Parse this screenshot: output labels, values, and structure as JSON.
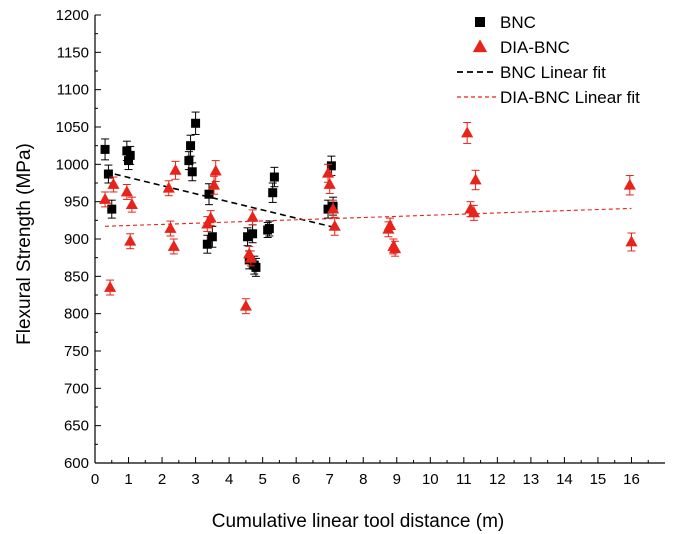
{
  "chart_data": {
    "type": "scatter",
    "xlabel": "Cumulative linear tool distance (m)",
    "ylabel": "Flexural Strength (MPa)",
    "xlim": [
      0,
      17
    ],
    "ylim": [
      600,
      1200
    ],
    "xticks": [
      0,
      1,
      2,
      3,
      4,
      5,
      6,
      7,
      8,
      9,
      10,
      11,
      12,
      13,
      14,
      15,
      16
    ],
    "yticks": [
      600,
      650,
      700,
      750,
      800,
      850,
      900,
      950,
      1000,
      1050,
      1100,
      1150,
      1200
    ],
    "grid": false,
    "legend_position": "top-right",
    "series": [
      {
        "name": "BNC",
        "marker": "square",
        "color": "#000000",
        "points": [
          {
            "x": 0.3,
            "y": 1020,
            "err": 14
          },
          {
            "x": 0.4,
            "y": 987,
            "err": 12
          },
          {
            "x": 0.5,
            "y": 940,
            "err": 12
          },
          {
            "x": 0.95,
            "y": 1018,
            "err": 13
          },
          {
            "x": 1.0,
            "y": 1005,
            "err": 12
          },
          {
            "x": 1.05,
            "y": 1012,
            "err": 12
          },
          {
            "x": 2.8,
            "y": 1005,
            "err": 12
          },
          {
            "x": 2.85,
            "y": 1025,
            "err": 14
          },
          {
            "x": 2.9,
            "y": 990,
            "err": 12
          },
          {
            "x": 3.0,
            "y": 1055,
            "err": 15
          },
          {
            "x": 3.35,
            "y": 893,
            "err": 12
          },
          {
            "x": 3.4,
            "y": 960,
            "err": 14
          },
          {
            "x": 3.5,
            "y": 903,
            "err": 14
          },
          {
            "x": 4.55,
            "y": 903,
            "err": 12
          },
          {
            "x": 4.6,
            "y": 872,
            "err": 12
          },
          {
            "x": 4.7,
            "y": 907,
            "err": 12
          },
          {
            "x": 4.75,
            "y": 865,
            "err": 12
          },
          {
            "x": 4.8,
            "y": 862,
            "err": 12
          },
          {
            "x": 5.15,
            "y": 912,
            "err": 10
          },
          {
            "x": 5.2,
            "y": 914,
            "err": 10
          },
          {
            "x": 5.3,
            "y": 962,
            "err": 13
          },
          {
            "x": 5.35,
            "y": 983,
            "err": 13
          },
          {
            "x": 6.95,
            "y": 940,
            "err": 12
          },
          {
            "x": 7.05,
            "y": 998,
            "err": 13
          },
          {
            "x": 7.1,
            "y": 944,
            "err": 12
          }
        ],
        "fit": {
          "label": "BNC Linear fit",
          "x": [
            0.3,
            7.1
          ],
          "y": [
            990,
            916
          ],
          "style": "dashed"
        }
      },
      {
        "name": "DIA-BNC",
        "marker": "triangle",
        "color": "#e8231a",
        "points": [
          {
            "x": 0.3,
            "y": 953,
            "err": 10
          },
          {
            "x": 0.45,
            "y": 835,
            "err": 10
          },
          {
            "x": 0.55,
            "y": 973,
            "err": 10
          },
          {
            "x": 0.95,
            "y": 963,
            "err": 10
          },
          {
            "x": 1.05,
            "y": 897,
            "err": 10
          },
          {
            "x": 1.1,
            "y": 946,
            "err": 10
          },
          {
            "x": 2.2,
            "y": 968,
            "err": 10
          },
          {
            "x": 2.25,
            "y": 914,
            "err": 10
          },
          {
            "x": 2.35,
            "y": 890,
            "err": 10
          },
          {
            "x": 2.4,
            "y": 992,
            "err": 12
          },
          {
            "x": 3.35,
            "y": 920,
            "err": 10
          },
          {
            "x": 3.45,
            "y": 928,
            "err": 10
          },
          {
            "x": 3.55,
            "y": 972,
            "err": 12
          },
          {
            "x": 3.6,
            "y": 991,
            "err": 14
          },
          {
            "x": 4.5,
            "y": 810,
            "err": 10
          },
          {
            "x": 4.6,
            "y": 880,
            "err": 10
          },
          {
            "x": 4.65,
            "y": 874,
            "err": 10
          },
          {
            "x": 4.7,
            "y": 929,
            "err": 10
          },
          {
            "x": 6.95,
            "y": 988,
            "err": 12
          },
          {
            "x": 7.0,
            "y": 973,
            "err": 12
          },
          {
            "x": 7.1,
            "y": 940,
            "err": 12
          },
          {
            "x": 7.15,
            "y": 917,
            "err": 12
          },
          {
            "x": 8.75,
            "y": 913,
            "err": 10
          },
          {
            "x": 8.8,
            "y": 918,
            "err": 10
          },
          {
            "x": 8.9,
            "y": 890,
            "err": 10
          },
          {
            "x": 8.95,
            "y": 887,
            "err": 10
          },
          {
            "x": 11.1,
            "y": 1042,
            "err": 14
          },
          {
            "x": 11.2,
            "y": 940,
            "err": 10
          },
          {
            "x": 11.3,
            "y": 935,
            "err": 10
          },
          {
            "x": 11.35,
            "y": 979,
            "err": 13
          },
          {
            "x": 15.95,
            "y": 972,
            "err": 13
          },
          {
            "x": 16.0,
            "y": 896,
            "err": 12
          }
        ],
        "fit": {
          "label": "DIA-BNC Linear fit",
          "x": [
            0.3,
            16.0
          ],
          "y": [
            917,
            941
          ],
          "style": "dashed"
        }
      }
    ]
  }
}
